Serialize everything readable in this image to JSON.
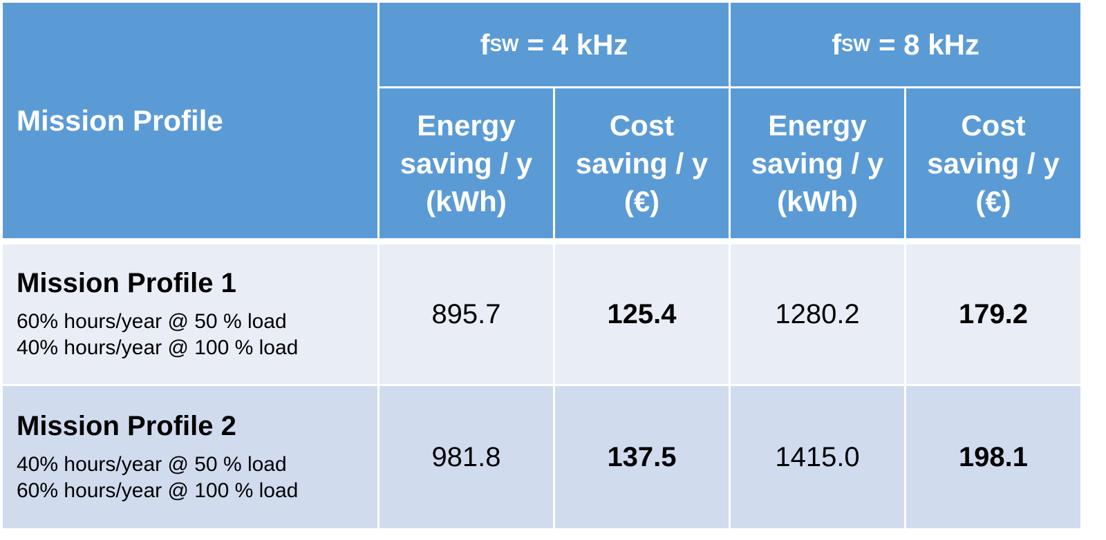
{
  "table": {
    "header": {
      "corner": "Mission Profile",
      "groups": [
        {
          "symbol": "f",
          "subscript": "SW",
          "rest": "= 4 kHz"
        },
        {
          "symbol": "f",
          "subscript": "SW",
          "rest": "= 8 kHz"
        }
      ],
      "columns": [
        "Energy saving / y (kWh)",
        "Cost saving / y (€)",
        "Energy saving / y (kWh)",
        "Cost saving / y (€)"
      ]
    },
    "rows": [
      {
        "title": "Mission Profile 1",
        "details": [
          "60% hours/year @ 50 % load",
          "40% hours/year @ 100 % load"
        ],
        "cells": [
          "895.7",
          "125.4",
          "1280.2",
          "179.2"
        ]
      },
      {
        "title": "Mission Profile 2",
        "details": [
          "40% hours/year @ 50 % load",
          "60% hours/year @ 100 % load"
        ],
        "cells": [
          "981.8",
          "137.5",
          "1415.0",
          "198.1"
        ]
      }
    ]
  }
}
